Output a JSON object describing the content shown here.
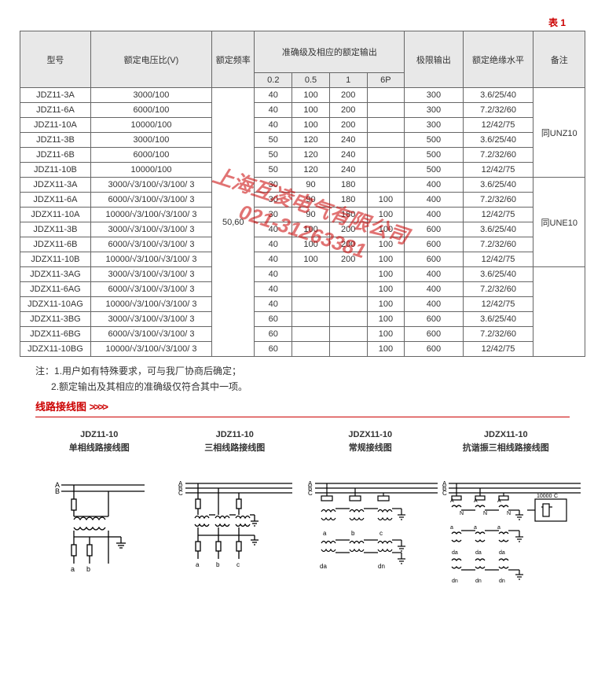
{
  "tableLabel": "表 1",
  "headers": {
    "model": "型号",
    "ratio": "额定电压比(V)",
    "freq": "额定频率",
    "accGroup": "准确级及相应的额定输出",
    "accCols": [
      "0.2",
      "0.5",
      "1",
      "6P"
    ],
    "limit": "极限输出",
    "insul": "额定绝缘水平",
    "note": "备注"
  },
  "freqValue": "50,60",
  "noteGroups": [
    "同UNZ10",
    "同UNE10",
    ""
  ],
  "rows": [
    {
      "m": "JDZ11-3A",
      "r": "3000/100",
      "a": [
        "40",
        "100",
        "200",
        ""
      ],
      "l": "300",
      "i": "3.6/25/40"
    },
    {
      "m": "JDZ11-6A",
      "r": "6000/100",
      "a": [
        "40",
        "100",
        "200",
        ""
      ],
      "l": "300",
      "i": "7.2/32/60"
    },
    {
      "m": "JDZ11-10A",
      "r": "10000/100",
      "a": [
        "40",
        "100",
        "200",
        ""
      ],
      "l": "300",
      "i": "12/42/75"
    },
    {
      "m": "JDZ11-3B",
      "r": "3000/100",
      "a": [
        "50",
        "120",
        "240",
        ""
      ],
      "l": "500",
      "i": "3.6/25/40"
    },
    {
      "m": "JDZ11-6B",
      "r": "6000/100",
      "a": [
        "50",
        "120",
        "240",
        ""
      ],
      "l": "500",
      "i": "7.2/32/60"
    },
    {
      "m": "JDZ11-10B",
      "r": "10000/100",
      "a": [
        "50",
        "120",
        "240",
        ""
      ],
      "l": "500",
      "i": "12/42/75"
    },
    {
      "m": "JDZX11-3A",
      "r": "3000/√3/100/√3/100/ 3",
      "a": [
        "30",
        "90",
        "180",
        ""
      ],
      "l": "400",
      "i": "3.6/25/40"
    },
    {
      "m": "JDZX11-6A",
      "r": "6000/√3/100/√3/100/ 3",
      "a": [
        "30",
        "90",
        "180",
        "100"
      ],
      "l": "400",
      "i": "7.2/32/60"
    },
    {
      "m": "JDZX11-10A",
      "r": "10000/√3/100/√3/100/ 3",
      "a": [
        "30",
        "90",
        "180",
        "100"
      ],
      "l": "400",
      "i": "12/42/75"
    },
    {
      "m": "JDZX11-3B",
      "r": "3000/√3/100/√3/100/ 3",
      "a": [
        "40",
        "100",
        "200",
        "100"
      ],
      "l": "600",
      "i": "3.6/25/40"
    },
    {
      "m": "JDZX11-6B",
      "r": "6000/√3/100/√3/100/ 3",
      "a": [
        "40",
        "100",
        "200",
        "100"
      ],
      "l": "600",
      "i": "7.2/32/60"
    },
    {
      "m": "JDZX11-10B",
      "r": "10000/√3/100/√3/100/ 3",
      "a": [
        "40",
        "100",
        "200",
        "100"
      ],
      "l": "600",
      "i": "12/42/75"
    },
    {
      "m": "JDZX11-3AG",
      "r": "3000/√3/100/√3/100/ 3",
      "a": [
        "40",
        "",
        "",
        "100"
      ],
      "l": "400",
      "i": "3.6/25/40"
    },
    {
      "m": "JDZX11-6AG",
      "r": "6000/√3/100/√3/100/ 3",
      "a": [
        "40",
        "",
        "",
        "100"
      ],
      "l": "400",
      "i": "7.2/32/60"
    },
    {
      "m": "JDZX11-10AG",
      "r": "10000/√3/100/√3/100/ 3",
      "a": [
        "40",
        "",
        "",
        "100"
      ],
      "l": "400",
      "i": "12/42/75"
    },
    {
      "m": "JDZX11-3BG",
      "r": "3000/√3/100/√3/100/ 3",
      "a": [
        "60",
        "",
        "",
        "100"
      ],
      "l": "600",
      "i": "3.6/25/40"
    },
    {
      "m": "JDZX11-6BG",
      "r": "6000/√3/100/√3/100/ 3",
      "a": [
        "60",
        "",
        "",
        "100"
      ],
      "l": "600",
      "i": "7.2/32/60"
    },
    {
      "m": "JDZX11-10BG",
      "r": "10000/√3/100/√3/100/ 3",
      "a": [
        "60",
        "",
        "",
        "100"
      ],
      "l": "600",
      "i": "12/42/75"
    }
  ],
  "notes": {
    "prefix": "注：",
    "l1": "1.用户如有特殊要求，可与我厂协商后确定；",
    "l2": "2.额定输出及其相应的准确级仅符合其中一项。"
  },
  "sectionTitle": "线路接线图",
  "sectionChev": ">>>>",
  "diagrams": [
    {
      "title": "JDZ11-10",
      "sub": "单相线路接线图"
    },
    {
      "title": "JDZ11-10",
      "sub": "三相线路接线图"
    },
    {
      "title": "JDZX11-10",
      "sub": "常规接线图"
    },
    {
      "title": "JDZX11-10",
      "sub": "抗谐振三相线路接线图"
    }
  ],
  "watermark": {
    "line1": "上海互凌电气有限公司",
    "line2": "021-31263381"
  },
  "style": {
    "accent": "#c00",
    "headerBg": "#e8e8e8",
    "border": "#666",
    "text": "#333",
    "tableFont": 11,
    "bodyFont": 12
  }
}
